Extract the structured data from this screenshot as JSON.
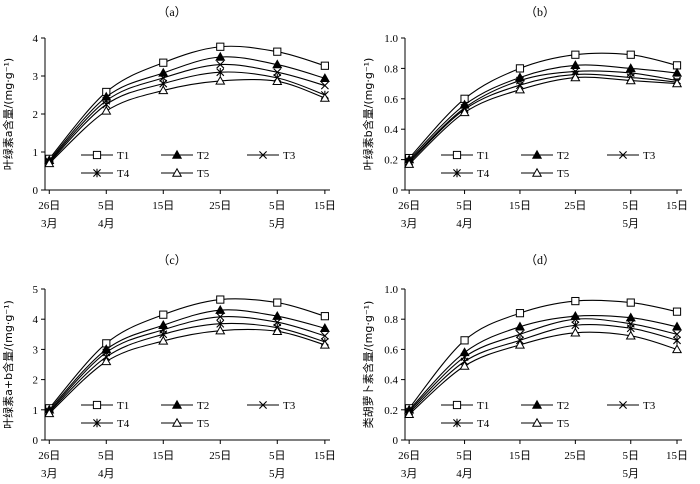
{
  "chart_data": [
    {
      "type": "line",
      "title": "（a）",
      "ylabel": "叶绿素a含量/(mg·g⁻¹)",
      "ylim": [
        0,
        4
      ],
      "yticks": [
        "0",
        "1",
        "2",
        "3",
        "4"
      ],
      "categories": [
        "26日",
        "5日",
        "15日",
        "25日",
        "5日",
        "15日"
      ],
      "months": [
        "3月",
        "4月",
        "5月"
      ],
      "series": [
        {
          "name": "T1",
          "values": [
            0.82,
            2.58,
            3.35,
            3.77,
            3.64,
            3.27
          ]
        },
        {
          "name": "T2",
          "values": [
            0.78,
            2.45,
            3.08,
            3.5,
            3.3,
            2.94
          ]
        },
        {
          "name": "T3",
          "values": [
            0.75,
            2.35,
            2.95,
            3.3,
            3.1,
            2.75
          ]
        },
        {
          "name": "T4",
          "values": [
            0.72,
            2.25,
            2.8,
            3.1,
            2.95,
            2.5
          ]
        },
        {
          "name": "T5",
          "values": [
            0.7,
            2.08,
            2.62,
            2.87,
            2.86,
            2.42
          ]
        }
      ]
    },
    {
      "type": "line",
      "title": "（b）",
      "ylabel": "叶绿素b含量/(mg·g⁻¹)",
      "ylim": [
        0,
        1.0
      ],
      "yticks": [
        "0",
        "0.2",
        "0.4",
        "0.6",
        "0.8",
        "1.0"
      ],
      "categories": [
        "26日",
        "5日",
        "15日",
        "25日",
        "5日",
        "15日"
      ],
      "months": [
        "3月",
        "4月",
        "5月"
      ],
      "series": [
        {
          "name": "T1",
          "values": [
            0.21,
            0.6,
            0.8,
            0.89,
            0.89,
            0.82
          ]
        },
        {
          "name": "T2",
          "values": [
            0.2,
            0.56,
            0.74,
            0.82,
            0.8,
            0.77
          ]
        },
        {
          "name": "T3",
          "values": [
            0.19,
            0.54,
            0.72,
            0.78,
            0.77,
            0.72
          ]
        },
        {
          "name": "T4",
          "values": [
            0.18,
            0.53,
            0.69,
            0.76,
            0.74,
            0.71
          ]
        },
        {
          "name": "T5",
          "values": [
            0.17,
            0.51,
            0.66,
            0.74,
            0.72,
            0.7
          ]
        }
      ]
    },
    {
      "type": "line",
      "title": "（c）",
      "ylabel": "叶绿素a+b含量/(mg·g⁻¹)",
      "ylim": [
        0,
        5
      ],
      "yticks": [
        "0",
        "1",
        "2",
        "3",
        "4",
        "5"
      ],
      "categories": [
        "26日",
        "5日",
        "15日",
        "25日",
        "5日",
        "15日"
      ],
      "months": [
        "3月",
        "4月",
        "5月"
      ],
      "series": [
        {
          "name": "T1",
          "values": [
            1.05,
            3.2,
            4.15,
            4.65,
            4.55,
            4.1
          ]
        },
        {
          "name": "T2",
          "values": [
            1.0,
            3.0,
            3.8,
            4.3,
            4.1,
            3.7
          ]
        },
        {
          "name": "T3",
          "values": [
            0.95,
            2.9,
            3.65,
            4.08,
            3.9,
            3.45
          ]
        },
        {
          "name": "T4",
          "values": [
            0.92,
            2.75,
            3.5,
            3.85,
            3.72,
            3.25
          ]
        },
        {
          "name": "T5",
          "values": [
            0.88,
            2.6,
            3.28,
            3.62,
            3.6,
            3.15
          ]
        }
      ]
    },
    {
      "type": "line",
      "title": "（d）",
      "ylabel": "类胡萝卜素含量/(mg·g⁻¹)",
      "ylim": [
        0,
        1.0
      ],
      "yticks": [
        "0",
        "0.2",
        "0.4",
        "0.6",
        "0.8",
        "1.0"
      ],
      "categories": [
        "26日",
        "5日",
        "15日",
        "25日",
        "5日",
        "15日"
      ],
      "months": [
        "3月",
        "4月",
        "5月"
      ],
      "series": [
        {
          "name": "T1",
          "values": [
            0.21,
            0.66,
            0.84,
            0.92,
            0.91,
            0.85
          ]
        },
        {
          "name": "T2",
          "values": [
            0.2,
            0.58,
            0.75,
            0.82,
            0.81,
            0.75
          ]
        },
        {
          "name": "T3",
          "values": [
            0.19,
            0.55,
            0.7,
            0.8,
            0.77,
            0.7
          ]
        },
        {
          "name": "T4",
          "values": [
            0.18,
            0.52,
            0.66,
            0.76,
            0.74,
            0.66
          ]
        },
        {
          "name": "T5",
          "values": [
            0.17,
            0.49,
            0.63,
            0.71,
            0.69,
            0.6
          ]
        }
      ]
    }
  ],
  "legend_labels": [
    "T1",
    "T2",
    "T3",
    "T4",
    "T5"
  ],
  "markers": {
    "T1": "open-square",
    "T2": "filled-triangle",
    "T3": "x-cross",
    "T4": "asterisk",
    "T5": "open-triangle"
  }
}
